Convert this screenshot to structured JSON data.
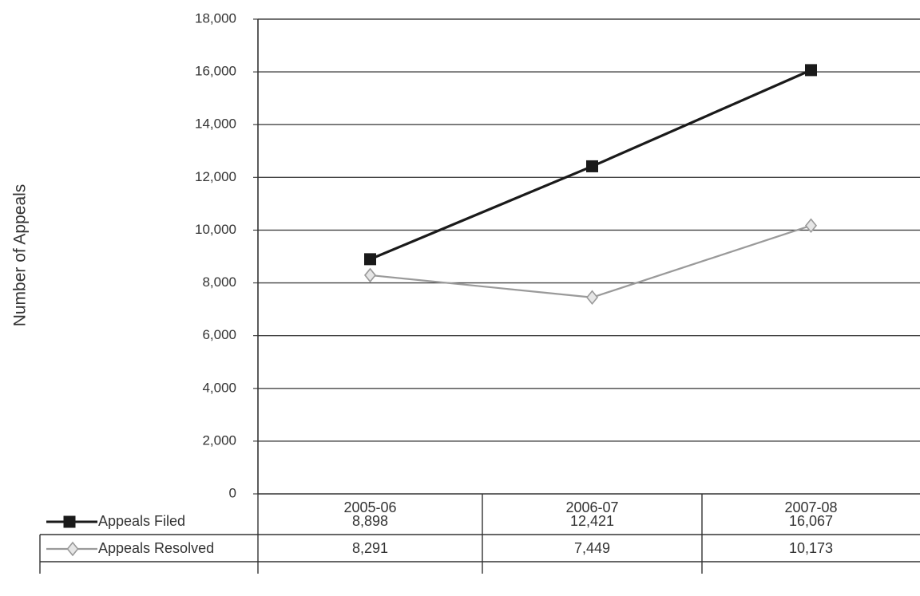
{
  "chart_data": {
    "type": "line",
    "ylabel": "Number of Appeals",
    "categories": [
      "2005-06",
      "2006-07",
      "2007-08"
    ],
    "ylim": [
      0,
      18000
    ],
    "yticks": [
      0,
      2000,
      4000,
      6000,
      8000,
      10000,
      12000,
      14000,
      16000,
      18000
    ],
    "ytick_labels": [
      "0",
      "2,000",
      "4,000",
      "6,000",
      "8,000",
      "10,000",
      "12,000",
      "14,000",
      "16,000",
      "18,000"
    ],
    "grid": true,
    "legend": "data-table",
    "series": [
      {
        "name": "Appeals Filed",
        "values": [
          8898,
          12421,
          16067
        ],
        "labels": [
          "8,898",
          "12,421",
          "16,067"
        ],
        "color": "#1a1a1a",
        "marker": "square"
      },
      {
        "name": "Appeals Resolved",
        "values": [
          8291,
          7449,
          10173
        ],
        "labels": [
          "8,291",
          "7,449",
          "10,173"
        ],
        "color": "#9a9a9a",
        "marker": "diamond"
      }
    ]
  }
}
